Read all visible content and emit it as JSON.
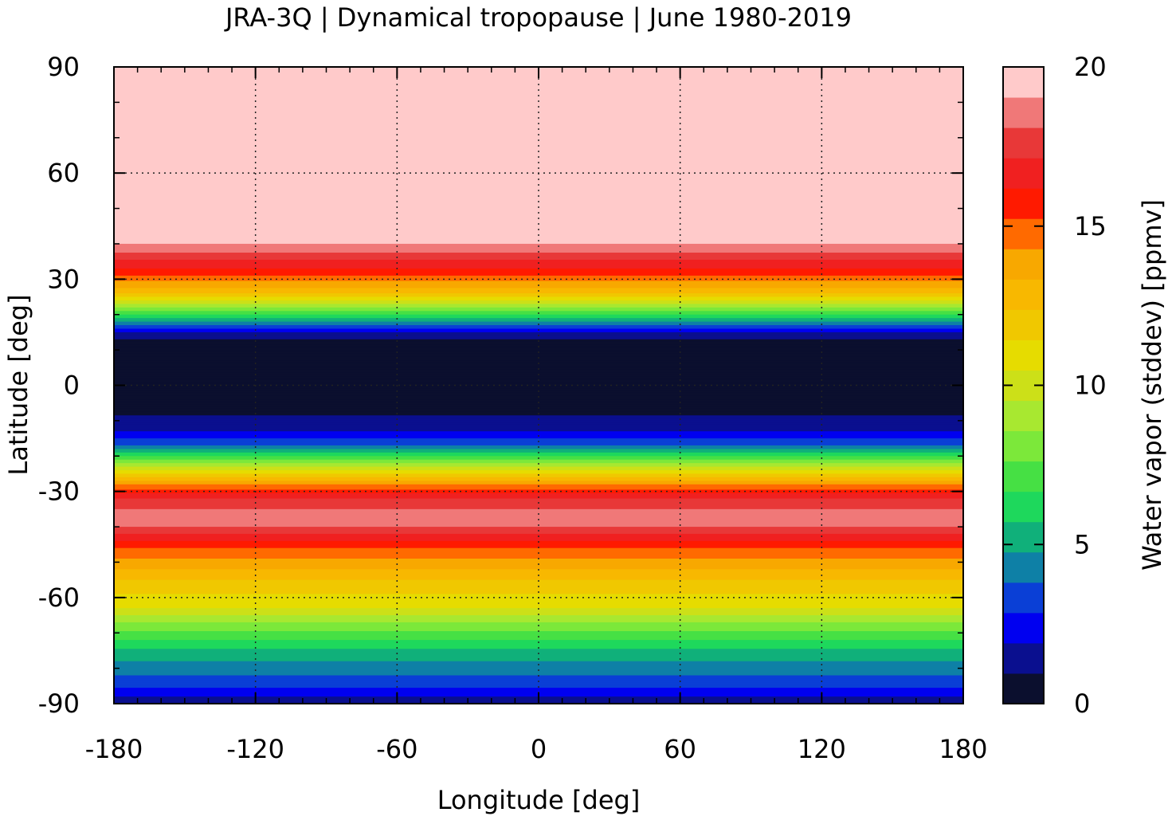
{
  "chart_data": {
    "type": "heatmap",
    "title": "JRA-3Q | Dynamical tropopause | June 1980-2019",
    "xlabel": "Longitude [deg]",
    "ylabel": "Latitude [deg]",
    "xlim": [
      -180,
      180
    ],
    "ylim": [
      -90,
      90
    ],
    "xticks": [
      "-180",
      "-120",
      "-60",
      "0",
      "60",
      "120",
      "180"
    ],
    "yticks": [
      "90",
      "60",
      "30",
      "0",
      "-30",
      "-60",
      "-90"
    ],
    "grid": true,
    "colorbar": {
      "label": "Water vapor (stddev) [ppmv]",
      "range": [
        0,
        20
      ],
      "ticks": [
        "0",
        "5",
        "10",
        "15",
        "20"
      ],
      "levels": [
        "#0b0f2e",
        "#0a0f8f",
        "#0000f0",
        "#0a3fd6",
        "#0e80a6",
        "#10b07a",
        "#1ed85c",
        "#46e044",
        "#7ce83a",
        "#a8e830",
        "#cce018",
        "#e6dc00",
        "#f0c800",
        "#f8b800",
        "#f8a800",
        "#ff6a00",
        "#ff1a00",
        "#f02020",
        "#e83838",
        "#f07878",
        "#ffcaca"
      ]
    },
    "zonal_profile_ppmv": [
      {
        "lat": 90,
        "value": 20
      },
      {
        "lat": 40,
        "value": 20
      },
      {
        "lat": 33,
        "value": 17
      },
      {
        "lat": 26,
        "value": 13
      },
      {
        "lat": 20,
        "value": 7
      },
      {
        "lat": 15,
        "value": 2
      },
      {
        "lat": 12,
        "value": 0.5
      },
      {
        "lat": -5,
        "value": 0.5
      },
      {
        "lat": -12,
        "value": 1.5
      },
      {
        "lat": -17,
        "value": 4
      },
      {
        "lat": -22,
        "value": 9
      },
      {
        "lat": -27,
        "value": 14
      },
      {
        "lat": -32,
        "value": 18
      },
      {
        "lat": -38,
        "value": 20
      },
      {
        "lat": -46,
        "value": 16
      },
      {
        "lat": -55,
        "value": 13
      },
      {
        "lat": -63,
        "value": 11
      },
      {
        "lat": -68,
        "value": 8.5
      },
      {
        "lat": -73,
        "value": 6.5
      },
      {
        "lat": -78,
        "value": 5
      },
      {
        "lat": -84,
        "value": 3.5
      },
      {
        "lat": -88,
        "value": 2
      },
      {
        "lat": -90,
        "value": 1.5
      }
    ]
  }
}
